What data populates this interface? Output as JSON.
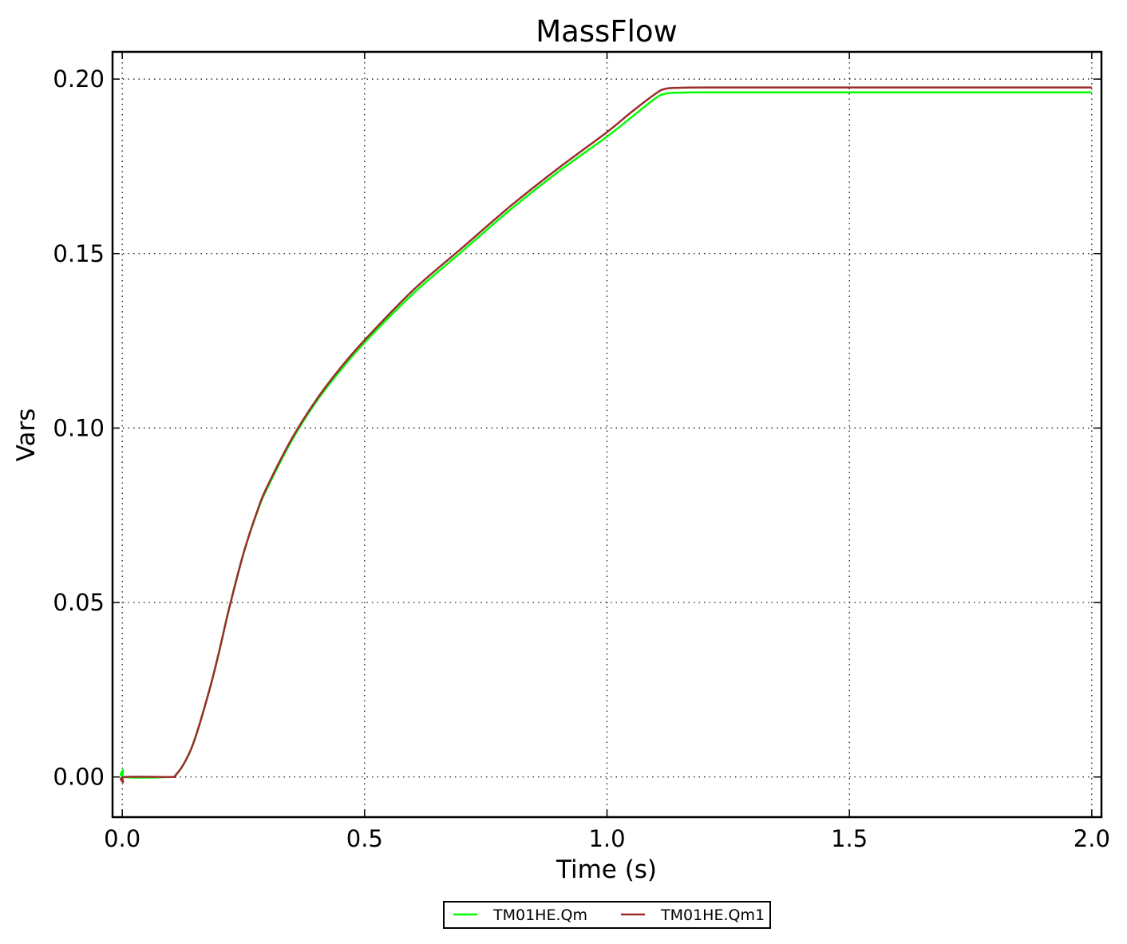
{
  "chart_data": {
    "type": "line",
    "title": "MassFlow",
    "xlabel": "Time (s)",
    "ylabel": "Vars",
    "xlim": [
      -0.02,
      2.02
    ],
    "ylim": [
      -0.0115,
      0.2078
    ],
    "x_ticks": [
      0.0,
      0.5,
      1.0,
      1.5,
      2.0
    ],
    "x_tick_labels": [
      "0.0",
      "0.5",
      "1.0",
      "1.5",
      "2.0"
    ],
    "y_ticks": [
      0.0,
      0.05,
      0.1,
      0.15,
      0.2
    ],
    "y_tick_labels": [
      "0.00",
      "0.05",
      "0.10",
      "0.15",
      "0.20"
    ],
    "grid": true,
    "grid_style": "dotted",
    "legend_position": "bottom-center, below plot",
    "series": [
      {
        "name": "TM01HE.Qm",
        "color": "#00ff00",
        "x": [
          0.0,
          0.002,
          0.005,
          0.1,
          0.11,
          0.13,
          0.15,
          0.18,
          0.2,
          0.22,
          0.25,
          0.28,
          0.3,
          0.35,
          0.4,
          0.45,
          0.5,
          0.6,
          0.7,
          0.8,
          0.9,
          1.0,
          1.05,
          1.1,
          1.12,
          1.15,
          1.2,
          1.5,
          2.0
        ],
        "y": [
          0.0,
          0.002,
          0.0,
          0.0,
          0.0005,
          0.0045,
          0.011,
          0.025,
          0.036,
          0.048,
          0.064,
          0.0765,
          0.083,
          0.0965,
          0.1075,
          0.1165,
          0.1245,
          0.1385,
          0.1505,
          0.1625,
          0.1735,
          0.1835,
          0.189,
          0.1945,
          0.1958,
          0.1961,
          0.1962,
          0.1962,
          0.1962
        ]
      },
      {
        "name": "TM01HE.Qm1",
        "color": "#9b2d2d",
        "x": [
          0.0,
          0.002,
          0.005,
          0.1,
          0.11,
          0.13,
          0.15,
          0.18,
          0.2,
          0.22,
          0.25,
          0.28,
          0.3,
          0.35,
          0.4,
          0.45,
          0.5,
          0.6,
          0.7,
          0.8,
          0.9,
          1.0,
          1.05,
          1.1,
          1.12,
          1.15,
          1.2,
          1.5,
          2.0
        ],
        "y": [
          0.0,
          -0.0015,
          0.0,
          0.0,
          0.0005,
          0.0045,
          0.011,
          0.025,
          0.036,
          0.048,
          0.064,
          0.0768,
          0.0835,
          0.097,
          0.108,
          0.1172,
          0.1252,
          0.1395,
          0.1515,
          0.1635,
          0.1745,
          0.1848,
          0.1905,
          0.1958,
          0.1972,
          0.1975,
          0.1976,
          0.1976,
          0.1976
        ]
      }
    ]
  }
}
